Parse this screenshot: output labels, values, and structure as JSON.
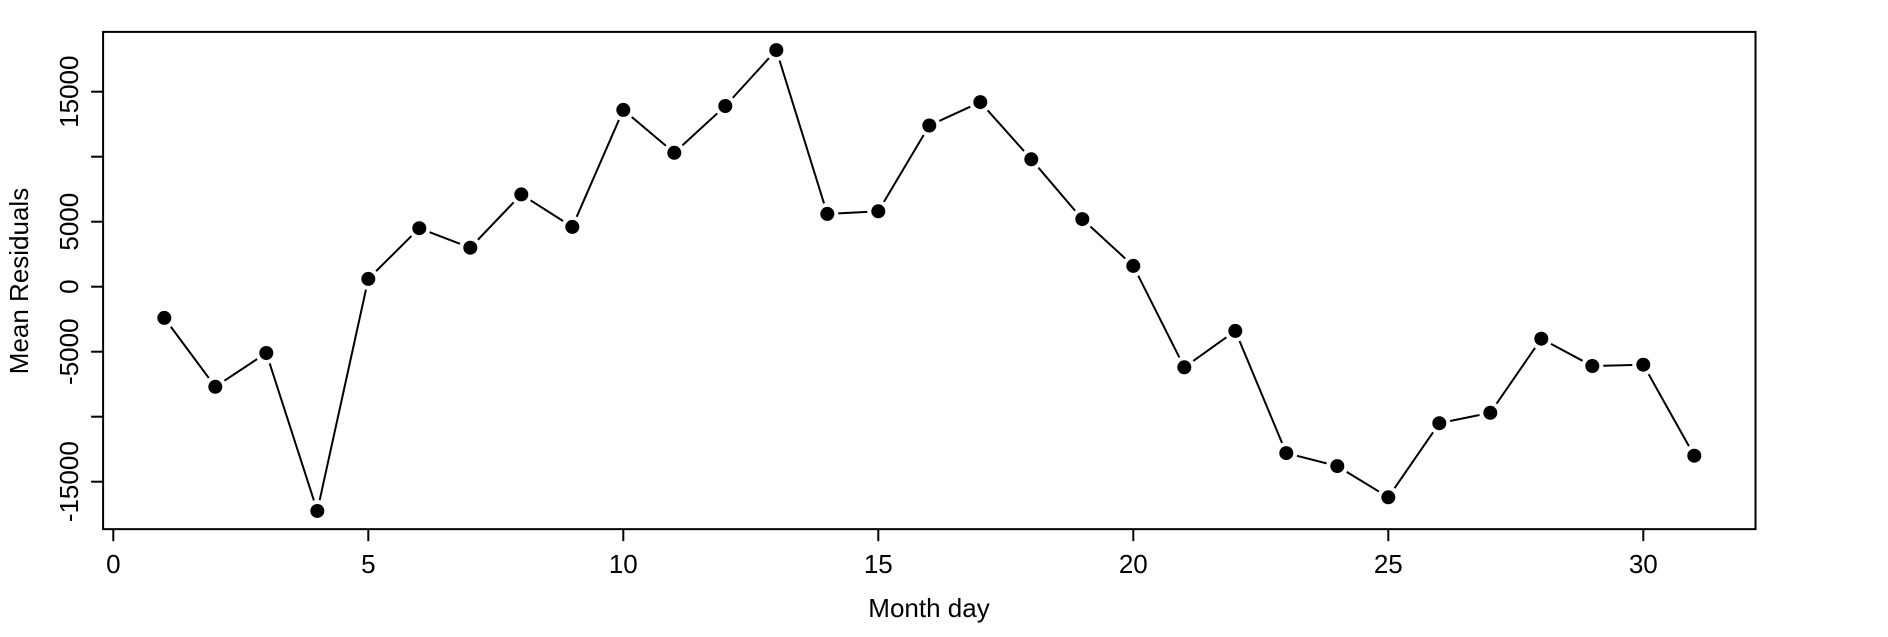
{
  "chart_data": {
    "type": "line",
    "style": "r-base-plot-type-b",
    "title": "",
    "xlabel": "Month day",
    "ylabel": "Mean Residuals",
    "x": [
      1,
      2,
      3,
      4,
      5,
      6,
      7,
      8,
      9,
      10,
      11,
      12,
      13,
      14,
      15,
      16,
      17,
      18,
      19,
      20,
      21,
      22,
      23,
      24,
      25,
      26,
      27,
      28,
      29,
      30,
      31
    ],
    "values": [
      -2400,
      -7700,
      -5100,
      -17250,
      600,
      4500,
      3000,
      7100,
      4600,
      13600,
      10300,
      13900,
      18200,
      5600,
      5800,
      12400,
      14200,
      9800,
      5200,
      1600,
      -6200,
      -3400,
      -12800,
      -13800,
      -16200,
      -10500,
      -9700,
      -4000,
      -6100,
      -6000,
      -13000
    ],
    "x_ticks": [
      0,
      5,
      10,
      15,
      20,
      25,
      30
    ],
    "x_tick_labels": [
      "0",
      "5",
      "10",
      "15",
      "20",
      "25",
      "30"
    ],
    "y_ticks": [
      -15000,
      -10000,
      -5000,
      0,
      5000,
      10000,
      15000
    ],
    "y_tick_labels": [
      "-15000",
      "",
      "-5000",
      "0",
      "5000",
      "",
      "15000"
    ],
    "xlim": [
      -0.2,
      32.2
    ],
    "ylim": [
      -18650,
      19600
    ],
    "grid": false,
    "legend": null,
    "marker": "filled-circle",
    "colors": {
      "line": "#000000",
      "marker": "#000000",
      "axis": "#000000",
      "background": "#ffffff"
    }
  }
}
